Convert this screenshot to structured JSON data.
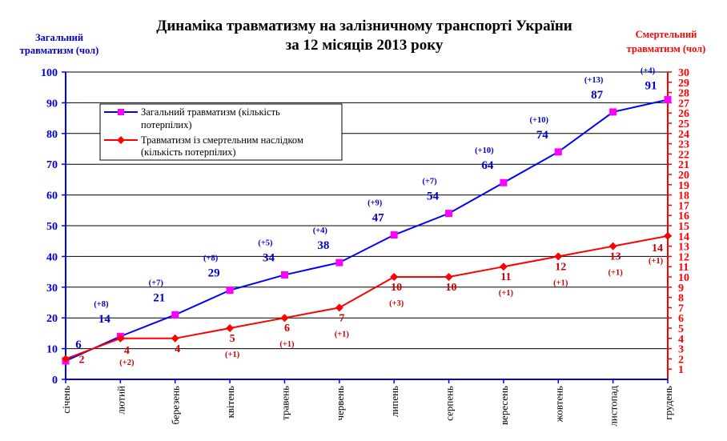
{
  "chart_data": {
    "type": "line",
    "title_line1": "Динаміка травматизму на залізничному транспорті України",
    "title_line2": "за 12 місяців 2013 року",
    "ylabel_left_line1": "Загальний",
    "ylabel_left_line2": "травматизм (чол)",
    "ylabel_right_line1": "Смертельний",
    "ylabel_right_line2": "травматизм (чол)",
    "categories": [
      "січень",
      "лютий",
      "березень",
      "квітень",
      "травень",
      "червень",
      "липень",
      "серпень",
      "вересень",
      "жовтень",
      "листопад",
      "грудень"
    ],
    "ylim_left": [
      0,
      100
    ],
    "yticks_left": [
      "0",
      "10",
      "20",
      "30",
      "40",
      "50",
      "60",
      "70",
      "80",
      "90",
      "100"
    ],
    "ylim_right": [
      0,
      30
    ],
    "yticks_right": [
      "1",
      "2",
      "3",
      "4",
      "5",
      "6",
      "7",
      "8",
      "9",
      "10",
      "11",
      "12",
      "13",
      "14",
      "15",
      "16",
      "17",
      "18",
      "19",
      "20",
      "21",
      "22",
      "23",
      "24",
      "25",
      "26",
      "27",
      "28",
      "29",
      "30"
    ],
    "grid": true,
    "legend_position": "upper-left",
    "series": [
      {
        "name": "Загальний травматизм (кількість потерпілих)",
        "name_line1": "Загальний травматизм (кількість",
        "name_line2": "потерпілих)",
        "axis": "left",
        "color": "#0000ff",
        "marker_color": "#ff00ff",
        "marker": "square",
        "values": [
          6,
          14,
          21,
          29,
          34,
          38,
          47,
          54,
          64,
          74,
          87,
          91
        ],
        "labels": [
          "6",
          "14",
          "21",
          "29",
          "34",
          "38",
          "47",
          "54",
          "64",
          "74",
          "87",
          "91"
        ],
        "deltas": [
          "",
          "(+8)",
          "(+7)",
          "(+8)",
          "(+5)",
          "(+4)",
          "(+9)",
          "(+7)",
          "(+10)",
          "(+10)",
          "(+13)",
          "(+4)"
        ]
      },
      {
        "name": "Травматизм із смертельним наслідком (кількість потерпілих)",
        "name_line1": "Травматизм із смертельним наслідком",
        "name_line2": "(кількість потерпілих)",
        "axis": "right",
        "color": "#ff0000",
        "marker_color": "#ff0000",
        "marker": "diamond",
        "values": [
          2,
          4,
          4,
          5,
          6,
          7,
          10,
          10,
          11,
          12,
          13,
          14
        ],
        "labels": [
          "2",
          "4",
          "4",
          "5",
          "6",
          "7",
          "10",
          "10",
          "11",
          "12",
          "13",
          "14"
        ],
        "deltas": [
          "",
          "(+2)",
          "",
          "(+1)",
          "(+1)",
          "(+1)",
          "(+3)",
          "",
          "(+1)",
          "(+1)",
          "(+1)",
          "(+1)"
        ]
      }
    ]
  }
}
